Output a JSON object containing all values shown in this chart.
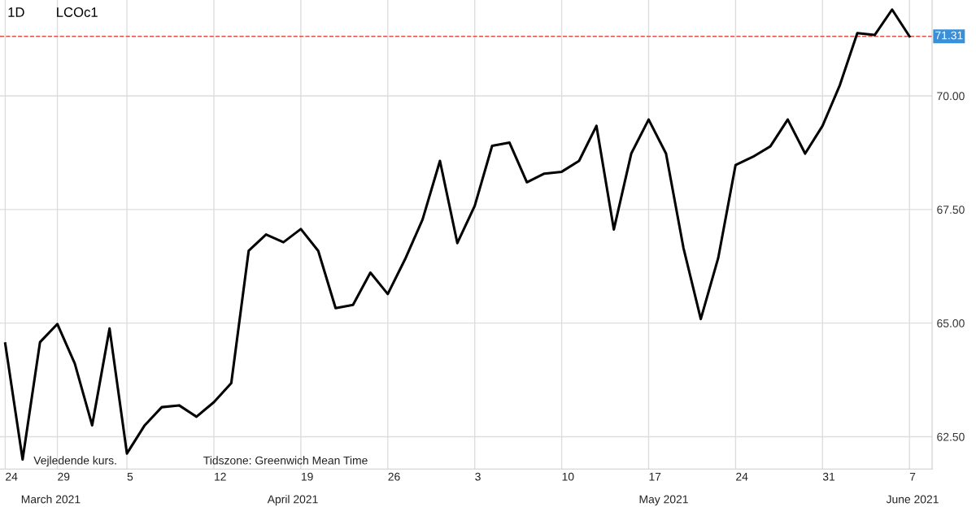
{
  "chart_data": {
    "type": "line",
    "title": "1D",
    "subtitle": "LCOc1",
    "categories": [
      "24",
      null,
      null,
      "29",
      null,
      null,
      null,
      "5",
      null,
      null,
      null,
      null,
      "12",
      null,
      null,
      null,
      null,
      "19",
      null,
      null,
      null,
      null,
      "26",
      null,
      null,
      null,
      null,
      "3",
      null,
      null,
      null,
      null,
      "10",
      null,
      null,
      null,
      null,
      "17",
      null,
      null,
      null,
      null,
      "24",
      null,
      null,
      null,
      null,
      "31",
      null,
      null,
      null,
      null,
      "7"
    ],
    "series": [
      {
        "color": "#000000",
        "values": [
          64.55,
          62.0,
          64.58,
          64.98,
          64.11,
          62.75,
          64.88,
          62.13,
          62.74,
          63.15,
          63.19,
          62.94,
          63.26,
          63.68,
          66.59,
          66.95,
          66.78,
          67.07,
          66.59,
          65.33,
          65.4,
          66.11,
          65.64,
          66.41,
          67.28,
          68.57,
          66.76,
          67.58,
          68.9,
          68.97,
          68.1,
          68.29,
          68.33,
          68.57,
          69.34,
          67.06,
          68.73,
          69.48,
          68.73,
          66.66,
          65.09,
          66.43,
          68.48,
          68.66,
          68.89,
          69.48,
          68.73,
          69.34,
          70.24,
          71.38,
          71.34,
          71.9,
          71.31
        ]
      }
    ],
    "ylim": [
      61.79,
      72.11
    ],
    "yticks": [
      {
        "value": 62.5,
        "label": "62.50"
      },
      {
        "value": 65,
        "label": "65.00"
      },
      {
        "value": 67.5,
        "label": "67.50"
      },
      {
        "value": 70,
        "label": "70.00"
      }
    ],
    "ref_lines": [
      {
        "axis": "y",
        "value": 71.31,
        "label": "71.31",
        "color": "#d9534f",
        "line_style": "dashed"
      }
    ],
    "annotations": [
      "March 2021",
      "April 2021",
      "May 2021",
      "June 2021",
      "Vejledende kurs.",
      "Tidszone: Greenwich Mean Time"
    ],
    "grid": true,
    "marker": "none",
    "line_style": "solid"
  }
}
